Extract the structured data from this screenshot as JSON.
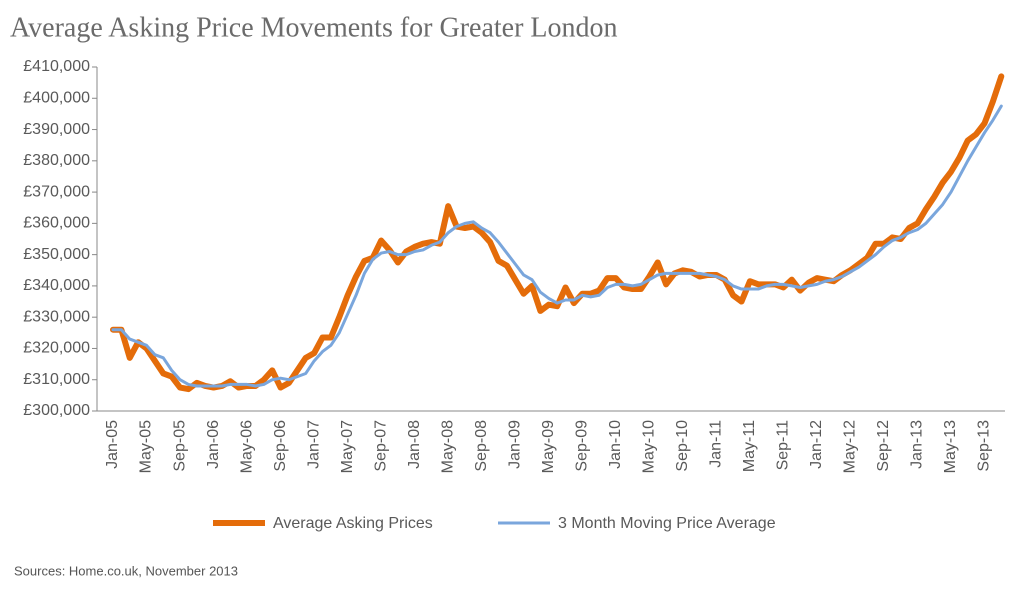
{
  "chart_data": {
    "type": "line",
    "title": "Average Asking Price Movements for Greater London",
    "source": "Sources: Home.co.uk, November 2013",
    "categories": [
      "Jan-05",
      null,
      null,
      null,
      "May-05",
      null,
      null,
      null,
      "Sep-05",
      null,
      null,
      null,
      "Jan-06",
      null,
      null,
      null,
      "May-06",
      null,
      null,
      null,
      "Sep-06",
      null,
      null,
      null,
      "Jan-07",
      null,
      null,
      null,
      "May-07",
      null,
      null,
      null,
      "Sep-07",
      null,
      null,
      null,
      "Jan-08",
      null,
      null,
      null,
      "May-08",
      null,
      null,
      null,
      "Sep-08",
      null,
      null,
      null,
      "Jan-09",
      null,
      null,
      null,
      "May-09",
      null,
      null,
      null,
      "Sep-09",
      null,
      null,
      null,
      "Jan-10",
      null,
      null,
      null,
      "May-10",
      null,
      null,
      null,
      "Sep-10",
      null,
      null,
      null,
      "Jan-11",
      null,
      null,
      null,
      "May-11",
      null,
      null,
      null,
      "Sep-11",
      null,
      null,
      null,
      "Jan-12",
      null,
      null,
      null,
      "May-12",
      null,
      null,
      null,
      "Sep-12",
      null,
      null,
      null,
      "Jan-13",
      null,
      null,
      null,
      "May-13",
      null,
      null,
      null,
      "Sep-13",
      null,
      null
    ],
    "series": [
      {
        "name": "Average Asking Prices",
        "color": "#e46c0a",
        "values": [
          326000,
          326000,
          317000,
          322000,
          320000,
          316000,
          312000,
          311000,
          307500,
          307000,
          309000,
          308000,
          307500,
          308000,
          309500,
          307500,
          308000,
          308000,
          310000,
          313000,
          307500,
          309000,
          313000,
          317000,
          318500,
          323500,
          323500,
          330000,
          337000,
          343000,
          348000,
          349000,
          354500,
          351500,
          347500,
          351000,
          352500,
          353500,
          354000,
          353500,
          365500,
          359000,
          358500,
          359000,
          357000,
          354000,
          348000,
          346500,
          342000,
          337500,
          340000,
          332000,
          334000,
          333500,
          339500,
          334500,
          337500,
          337500,
          338500,
          342500,
          342500,
          339500,
          339000,
          339000,
          343000,
          347500,
          340500,
          344000,
          345000,
          344500,
          343000,
          343500,
          343500,
          342000,
          337000,
          335000,
          341500,
          340500,
          340500,
          340500,
          339500,
          342000,
          338500,
          341000,
          342500,
          342000,
          341500,
          343500,
          345000,
          347000,
          349000,
          353500,
          353500,
          355500,
          355000,
          358500,
          360000,
          364500,
          368500,
          373000,
          376500,
          381000,
          386500,
          388500,
          392000,
          399000,
          407000
        ]
      },
      {
        "name": "3 Month Moving Price Average",
        "color": "#7aa6dc",
        "values": [
          326000,
          326000,
          323000,
          322000,
          321000,
          318000,
          317000,
          313000,
          310000,
          308500,
          308000,
          308000,
          308000,
          308000,
          308500,
          308500,
          308500,
          308000,
          308500,
          310000,
          310500,
          310000,
          311000,
          312000,
          316000,
          319000,
          321000,
          325000,
          331000,
          337000,
          344000,
          348500,
          350500,
          351000,
          350000,
          350000,
          351000,
          351500,
          353000,
          354000,
          357000,
          359000,
          360000,
          360500,
          358500,
          357000,
          354000,
          350500,
          347000,
          343500,
          342000,
          338000,
          336000,
          334500,
          335500,
          335500,
          337000,
          336500,
          337000,
          339500,
          340500,
          340500,
          340000,
          340500,
          342000,
          343500,
          344000,
          344000,
          344000,
          344000,
          344000,
          343500,
          343000,
          342000,
          340000,
          339000,
          339000,
          339000,
          340000,
          340500,
          340500,
          340000,
          339500,
          340000,
          340500,
          341500,
          342000,
          343000,
          344500,
          346000,
          348000,
          350000,
          352500,
          354500,
          355500,
          357000,
          358000,
          360000,
          363000,
          366000,
          370000,
          375000,
          380000,
          384500,
          389000,
          393000,
          397500
        ]
      }
    ],
    "ylim": [
      300000,
      410000
    ],
    "yticks": [
      {
        "value": 300000,
        "label": "£300,000"
      },
      {
        "value": 310000,
        "label": "£310,000"
      },
      {
        "value": 320000,
        "label": "£320,000"
      },
      {
        "value": 330000,
        "label": "£330,000"
      },
      {
        "value": 340000,
        "label": "£340,000"
      },
      {
        "value": 350000,
        "label": "£350,000"
      },
      {
        "value": 360000,
        "label": "£360,000"
      },
      {
        "value": 370000,
        "label": "£370,000"
      },
      {
        "value": 380000,
        "label": "£380,000"
      },
      {
        "value": 390000,
        "label": "£390,000"
      },
      {
        "value": 400000,
        "label": "£400,000"
      },
      {
        "value": 410000,
        "label": "£410,000"
      }
    ],
    "grid": false,
    "legend": "bottom"
  }
}
